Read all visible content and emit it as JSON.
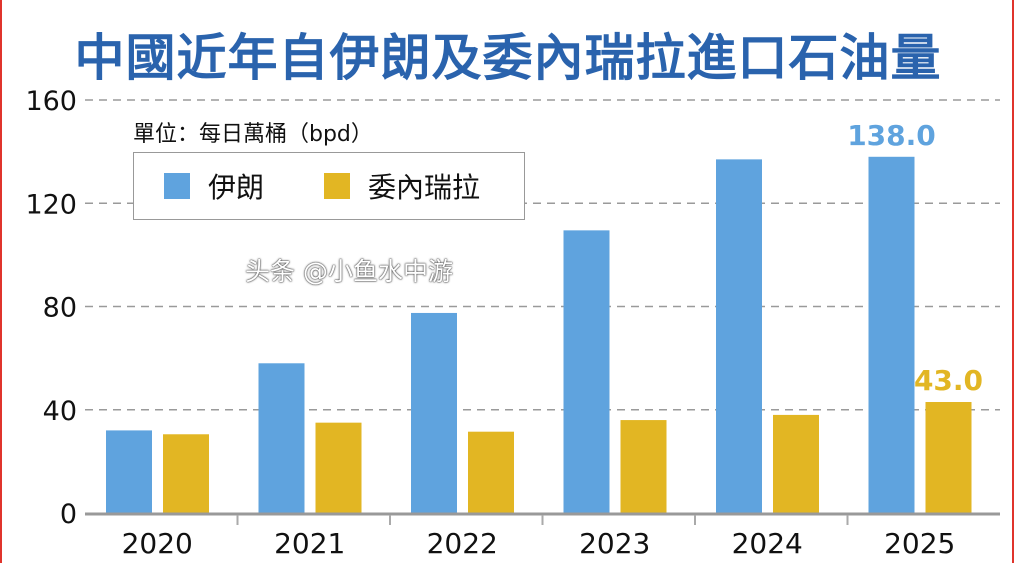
{
  "title": "中國近年自伊朗及委內瑞拉進口石油量",
  "unit_label": "單位：每日萬桶（bpd）",
  "watermark": "头条 @小鱼水中游",
  "chart_data": {
    "type": "bar",
    "title": "中國近年自伊朗及委內瑞拉進口石油量",
    "ylabel": "單位：每日萬桶（bpd）",
    "categories": [
      "2020",
      "2021",
      "2022",
      "2023",
      "2024",
      "2025"
    ],
    "series": [
      {
        "name": "伊朗",
        "color": "#5fa3de",
        "values": [
          32,
          58,
          77.5,
          109.5,
          137,
          138.0
        ]
      },
      {
        "name": "委內瑞拉",
        "color": "#e2b623",
        "values": [
          30.5,
          35,
          31.5,
          36,
          38,
          43.0
        ]
      }
    ],
    "data_labels": [
      {
        "series": 0,
        "index": 5,
        "text": "138.0"
      },
      {
        "series": 1,
        "index": 5,
        "text": "43.0"
      }
    ],
    "ylim": [
      0,
      160
    ],
    "yticks": [
      "0",
      "40",
      "80",
      "120",
      "160"
    ],
    "grid": true,
    "legend_position": "top-left"
  }
}
